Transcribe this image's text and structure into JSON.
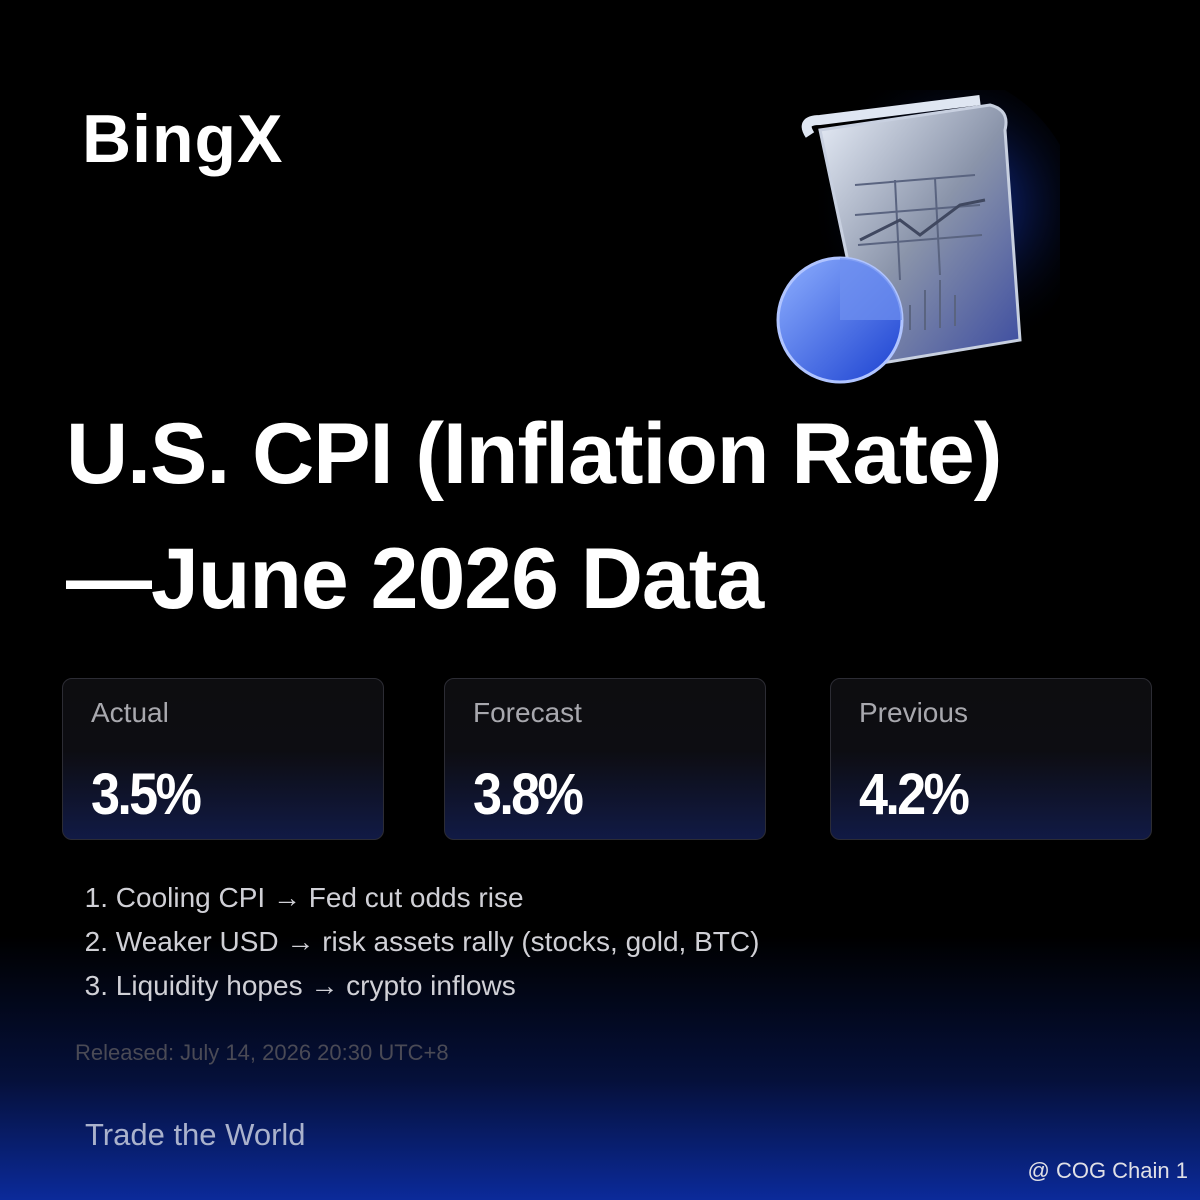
{
  "header": {
    "logo": "BingX"
  },
  "title": {
    "line1": "U.S. CPI (Inflation Rate)",
    "line2": "—June 2026 Data"
  },
  "cards": [
    {
      "label": "Actual",
      "value": "3.5%"
    },
    {
      "label": "Forecast",
      "value": "3.8%"
    },
    {
      "label": "Previous",
      "value": "4.2%"
    }
  ],
  "points": [
    {
      "number": "1.",
      "text": "Cooling CPI → Fed cut odds rise"
    },
    {
      "number": "2.",
      "text": "Weaker USD → risk assets rally (stocks, gold, BTC)"
    },
    {
      "number": "3.",
      "text": "Liquidity hopes → crypto inflows"
    }
  ],
  "released": "Released: July 14, 2026 20:30 UTC+8",
  "tagline": "Trade the World",
  "watermark": "@ COG Chain 1"
}
